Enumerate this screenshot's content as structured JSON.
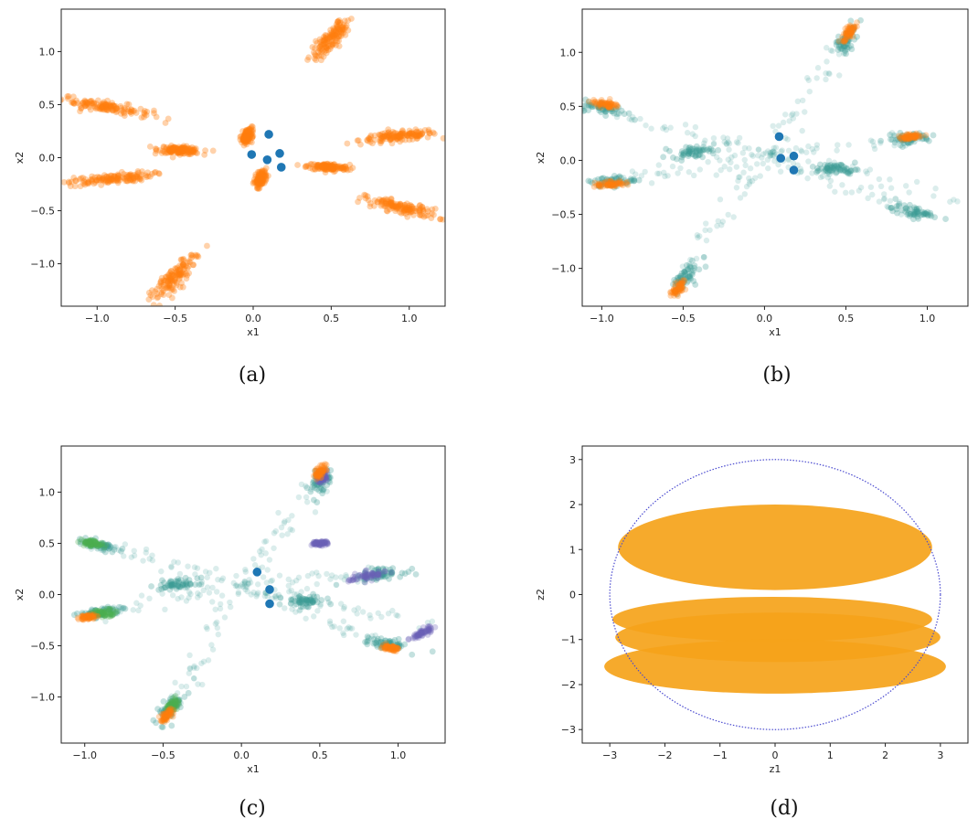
{
  "colors": {
    "blue": "#1f77b4",
    "orange": "#ff7f0e",
    "teal": "#3a9d96",
    "purple": "#6b5fb5",
    "green": "#4caf50",
    "gold": "#f5a31a",
    "circle": "#4b4bd0"
  },
  "chart_data": [
    {
      "id": "a",
      "type": "scatter",
      "caption": "(a)",
      "xlabel": "x1",
      "ylabel": "x2",
      "xlim": [
        -1.23,
        1.23
      ],
      "ylim": [
        -1.4,
        1.4
      ],
      "xticks": [
        -1.0,
        -0.5,
        0.0,
        0.5,
        1.0
      ],
      "yticks": [
        -1.0,
        -0.5,
        0.0,
        0.5,
        1.0
      ],
      "xtick_labels": [
        "−1.0",
        "−0.5",
        "0.0",
        "0.5",
        "1.0"
      ],
      "ytick_labels": [
        "−1.0",
        "−0.5",
        "0.0",
        "0.5",
        "1.0"
      ],
      "series": [
        {
          "color": "orange",
          "clusters": [
            {
              "x": 0.5,
              "y": 1.12,
              "dir": 60,
              "len": 0.24,
              "wid": 0.06
            },
            {
              "x": -0.94,
              "y": 0.48,
              "dir": -15,
              "len": 0.33,
              "wid": 0.05
            },
            {
              "x": 0.93,
              "y": 0.2,
              "dir": 8,
              "len": 0.28,
              "wid": 0.045
            },
            {
              "x": -0.47,
              "y": 0.07,
              "dir": -5,
              "len": 0.15,
              "wid": 0.035
            },
            {
              "x": 0.48,
              "y": -0.09,
              "dir": -5,
              "len": 0.15,
              "wid": 0.035
            },
            {
              "x": -0.92,
              "y": -0.2,
              "dir": 8,
              "len": 0.3,
              "wid": 0.045
            },
            {
              "x": 0.95,
              "y": -0.47,
              "dir": -18,
              "len": 0.28,
              "wid": 0.055
            },
            {
              "x": -0.5,
              "y": -1.12,
              "dir": 60,
              "len": 0.3,
              "wid": 0.06
            },
            {
              "x": -0.04,
              "y": 0.2,
              "dir": 75,
              "len": 0.08,
              "wid": 0.03
            },
            {
              "x": 0.05,
              "y": -0.2,
              "dir": 75,
              "len": 0.08,
              "wid": 0.03
            }
          ]
        },
        {
          "color": "blue",
          "points": [
            [
              0.1,
              0.22
            ],
            [
              -0.01,
              0.03
            ],
            [
              0.09,
              -0.02
            ],
            [
              0.17,
              0.04
            ],
            [
              0.18,
              -0.09
            ]
          ]
        }
      ]
    },
    {
      "id": "b",
      "type": "scatter",
      "caption": "(b)",
      "xlabel": "x1",
      "ylabel": "x2",
      "xlim": [
        -1.12,
        1.25
      ],
      "ylim": [
        -1.35,
        1.4
      ],
      "xticks": [
        -1.0,
        -0.5,
        0.0,
        0.5,
        1.0
      ],
      "yticks": [
        -1.0,
        -0.5,
        0.0,
        0.5,
        1.0
      ],
      "xtick_labels": [
        "−1.0",
        "−0.5",
        "0.0",
        "0.5",
        "1.0"
      ],
      "ytick_labels": [
        "−1.0",
        "−0.5",
        "0.0",
        "0.5",
        "1.0"
      ],
      "series": [
        {
          "color": "teal",
          "arms": [
            {
              "from": [
                0.0,
                0.05
              ],
              "to": [
                -0.98,
                0.48
              ]
            },
            {
              "from": [
                0.0,
                0.05
              ],
              "to": [
                0.5,
                1.12
              ]
            },
            {
              "from": [
                0.0,
                0.05
              ],
              "to": [
                0.88,
                0.2
              ]
            },
            {
              "from": [
                0.0,
                0.05
              ],
              "to": [
                1.2,
                -0.35
              ]
            },
            {
              "from": [
                0.0,
                0.05
              ],
              "to": [
                -0.5,
                -1.1
              ]
            },
            {
              "from": [
                0.0,
                0.05
              ],
              "to": [
                -0.95,
                -0.2
              ]
            },
            {
              "from": [
                0.0,
                0.05
              ],
              "to": [
                0.9,
                -0.48
              ]
            }
          ],
          "clusters": [
            {
              "x": -0.98,
              "y": 0.48,
              "dir": -15,
              "len": 0.16,
              "wid": 0.05
            },
            {
              "x": 0.5,
              "y": 1.12,
              "dir": 70,
              "len": 0.16,
              "wid": 0.06
            },
            {
              "x": 0.88,
              "y": 0.2,
              "dir": 10,
              "len": 0.16,
              "wid": 0.05
            },
            {
              "x": -0.45,
              "y": 0.08,
              "dir": 5,
              "len": 0.14,
              "wid": 0.05
            },
            {
              "x": 0.45,
              "y": -0.08,
              "dir": -5,
              "len": 0.14,
              "wid": 0.05
            },
            {
              "x": -0.95,
              "y": -0.2,
              "dir": 10,
              "len": 0.16,
              "wid": 0.05
            },
            {
              "x": 0.92,
              "y": -0.48,
              "dir": -15,
              "len": 0.16,
              "wid": 0.05
            },
            {
              "x": -0.5,
              "y": -1.1,
              "dir": 65,
              "len": 0.16,
              "wid": 0.06
            }
          ]
        },
        {
          "color": "orange",
          "clusters": [
            {
              "x": -0.98,
              "y": 0.52,
              "dir": -15,
              "len": 0.1,
              "wid": 0.03
            },
            {
              "x": 0.52,
              "y": 1.18,
              "dir": 70,
              "len": 0.1,
              "wid": 0.03
            },
            {
              "x": -0.95,
              "y": -0.22,
              "dir": 10,
              "len": 0.1,
              "wid": 0.03
            },
            {
              "x": -0.53,
              "y": -1.18,
              "dir": 65,
              "len": 0.1,
              "wid": 0.03
            },
            {
              "x": 0.9,
              "y": 0.22,
              "dir": 10,
              "len": 0.08,
              "wid": 0.025
            }
          ]
        },
        {
          "color": "blue",
          "points": [
            [
              0.09,
              0.22
            ],
            [
              0.18,
              0.04
            ],
            [
              0.18,
              -0.09
            ],
            [
              0.1,
              0.02
            ]
          ]
        }
      ]
    },
    {
      "id": "c",
      "type": "scatter",
      "caption": "(c)",
      "xlabel": "x1",
      "ylabel": "x2",
      "xlim": [
        -1.15,
        1.3
      ],
      "ylim": [
        -1.45,
        1.45
      ],
      "xticks": [
        -1.0,
        -0.5,
        0.0,
        0.5,
        1.0
      ],
      "yticks": [
        -1.0,
        -0.5,
        0.0,
        0.5,
        1.0
      ],
      "xtick_labels": [
        "−1.0",
        "−0.5",
        "0.0",
        "0.5",
        "1.0"
      ],
      "ytick_labels": [
        "−1.0",
        "−0.5",
        "0.0",
        "0.5",
        "1.0"
      ],
      "series": [
        {
          "color": "teal",
          "arms": [
            {
              "from": [
                0.0,
                0.1
              ],
              "to": [
                -0.95,
                0.52
              ]
            },
            {
              "from": [
                0.0,
                0.1
              ],
              "to": [
                0.5,
                1.12
              ]
            },
            {
              "from": [
                0.0,
                0.1
              ],
              "to": [
                0.9,
                0.2
              ]
            },
            {
              "from": [
                0.0,
                0.1
              ],
              "to": [
                1.2,
                -0.3
              ]
            },
            {
              "from": [
                0.0,
                0.1
              ],
              "to": [
                -0.45,
                -1.1
              ]
            },
            {
              "from": [
                0.0,
                0.1
              ],
              "to": [
                -0.9,
                -0.18
              ]
            },
            {
              "from": [
                0.0,
                0.1
              ],
              "to": [
                0.9,
                -0.48
              ]
            }
          ],
          "clusters": [
            {
              "x": -0.92,
              "y": 0.48,
              "dir": -15,
              "len": 0.16,
              "wid": 0.05
            },
            {
              "x": 0.5,
              "y": 1.1,
              "dir": 75,
              "len": 0.16,
              "wid": 0.06
            },
            {
              "x": 0.88,
              "y": 0.2,
              "dir": 10,
              "len": 0.16,
              "wid": 0.05
            },
            {
              "x": -0.4,
              "y": 0.1,
              "dir": 5,
              "len": 0.14,
              "wid": 0.05
            },
            {
              "x": 0.4,
              "y": -0.06,
              "dir": -5,
              "len": 0.14,
              "wid": 0.05
            },
            {
              "x": -0.9,
              "y": -0.18,
              "dir": 10,
              "len": 0.16,
              "wid": 0.05
            },
            {
              "x": 0.92,
              "y": -0.48,
              "dir": -10,
              "len": 0.16,
              "wid": 0.05
            },
            {
              "x": -0.45,
              "y": -1.1,
              "dir": 65,
              "len": 0.16,
              "wid": 0.06
            }
          ]
        },
        {
          "color": "purple",
          "clusters": [
            {
              "x": 0.8,
              "y": 0.18,
              "dir": 15,
              "len": 0.14,
              "wid": 0.04
            },
            {
              "x": 1.15,
              "y": -0.38,
              "dir": 45,
              "len": 0.1,
              "wid": 0.03
            },
            {
              "x": 0.5,
              "y": 0.5,
              "dir": 0,
              "len": 0.06,
              "wid": 0.02
            },
            {
              "x": 0.52,
              "y": 1.15,
              "dir": 75,
              "len": 0.06,
              "wid": 0.03
            }
          ]
        },
        {
          "color": "green",
          "clusters": [
            {
              "x": -0.88,
              "y": -0.18,
              "dir": 10,
              "len": 0.1,
              "wid": 0.035
            },
            {
              "x": -0.95,
              "y": 0.5,
              "dir": -15,
              "len": 0.08,
              "wid": 0.03
            },
            {
              "x": -0.44,
              "y": -1.08,
              "dir": 65,
              "len": 0.08,
              "wid": 0.03
            }
          ]
        },
        {
          "color": "orange",
          "clusters": [
            {
              "x": 0.5,
              "y": 1.2,
              "dir": 75,
              "len": 0.08,
              "wid": 0.03
            },
            {
              "x": -0.48,
              "y": -1.18,
              "dir": 65,
              "len": 0.08,
              "wid": 0.03
            },
            {
              "x": -0.98,
              "y": -0.22,
              "dir": 10,
              "len": 0.06,
              "wid": 0.025
            },
            {
              "x": 0.95,
              "y": -0.52,
              "dir": -10,
              "len": 0.06,
              "wid": 0.025
            }
          ]
        },
        {
          "color": "blue",
          "points": [
            [
              0.1,
              0.22
            ],
            [
              0.18,
              0.05
            ],
            [
              0.18,
              -0.09
            ]
          ]
        }
      ]
    },
    {
      "id": "d",
      "type": "area",
      "caption": "(d)",
      "xlabel": "z1",
      "ylabel": "z2",
      "xlim": [
        -3.5,
        3.5
      ],
      "ylim": [
        -3.3,
        3.3
      ],
      "xticks": [
        -3,
        -2,
        -1,
        0,
        1,
        2,
        3
      ],
      "yticks": [
        -3,
        -2,
        -1,
        0,
        1,
        2,
        3
      ],
      "xtick_labels": [
        "−3",
        "−2",
        "−1",
        "0",
        "1",
        "2",
        "3"
      ],
      "ytick_labels": [
        "−3",
        "−2",
        "−1",
        "0",
        "1",
        "2",
        "3"
      ],
      "circle_radius": 3,
      "ellipses": [
        {
          "cx": 0.0,
          "cy": 1.05,
          "rx": 2.85,
          "ry": 0.95
        },
        {
          "cx": -0.05,
          "cy": -0.55,
          "rx": 2.9,
          "ry": 0.5
        },
        {
          "cx": 0.05,
          "cy": -0.95,
          "rx": 2.95,
          "ry": 0.55
        },
        {
          "cx": 0.0,
          "cy": -1.6,
          "rx": 3.1,
          "ry": 0.6
        }
      ]
    }
  ]
}
